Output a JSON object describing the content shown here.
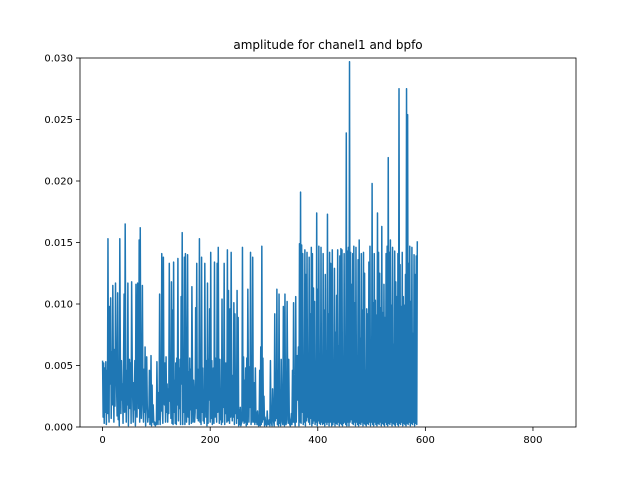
{
  "chart_data": {
    "type": "line",
    "title": "amplitude for chanel1 and bpfo",
    "xlabel": "",
    "ylabel": "",
    "xlim": [
      -42,
      880
    ],
    "ylim": [
      0.0,
      0.03
    ],
    "xticks": [
      0,
      200,
      400,
      600,
      800
    ],
    "xtick_labels": [
      "0",
      "200",
      "400",
      "600",
      "800"
    ],
    "yticks": [
      0.0,
      0.005,
      0.01,
      0.015,
      0.02,
      0.025,
      0.03
    ],
    "ytick_labels": [
      "0.000",
      "0.005",
      "0.010",
      "0.015",
      "0.020",
      "0.025",
      "0.030"
    ],
    "grid": false,
    "series": [
      {
        "color": "#1f77b4",
        "x_start": 0,
        "x_step": 1,
        "values": [
          0.0054,
          0.0008,
          0.0052,
          0.0003,
          0.0048,
          0.0012,
          0.0053,
          0.0002,
          0.0046,
          0.0011,
          0.0153,
          0.0021,
          0.0004,
          0.0098,
          0.0035,
          0.0105,
          0.0007,
          0.0061,
          0.0018,
          0.0115,
          0.0046,
          0.0004,
          0.0063,
          0.0017,
          0.0117,
          0.0057,
          0.0033,
          0.0009,
          0.0109,
          0.0006,
          0.0035,
          0.0001,
          0.0153,
          0.0056,
          0.0011,
          0.0054,
          0.0022,
          0.0035,
          0.0003,
          0.0055,
          0.0108,
          0.0012,
          0.0165,
          0.0051,
          0.0004,
          0.0046,
          0.0018,
          0.0117,
          0.0001,
          0.0041,
          0.0055,
          0.0015,
          0.0052,
          0.0003,
          0.0118,
          0.0058,
          0.0024,
          0.0004,
          0.0036,
          0.0014,
          0.0054,
          0.0001,
          0.0116,
          0.0032,
          0.0008,
          0.0117,
          0.0052,
          0.0015,
          0.0152,
          0.0004,
          0.0162,
          0.0041,
          0.0007,
          0.0034,
          0.0115,
          0.0022,
          0.0004,
          0.0047,
          0.0012,
          0.0065,
          0.0001,
          0.0031,
          0.0057,
          0.0018,
          0.0004,
          0.0012,
          0.0008,
          0.0046,
          0.0002,
          0.0009,
          0.0058,
          0.0001,
          0.0034,
          0.0004,
          0.0018,
          0.0005,
          0.0002,
          0.0004,
          0.0001,
          0.0003,
          0.0002,
          0.0053,
          0.0012,
          0.0002,
          0.0028,
          0.0006,
          0.0108,
          0.0002,
          0.0034,
          0.0013,
          0.0141,
          0.0017,
          0.0003,
          0.0138,
          0.0026,
          0.0018,
          0.0052,
          0.0004,
          0.0057,
          0.0012,
          0.0035,
          0.0004,
          0.0031,
          0.0011,
          0.0133,
          0.0021,
          0.0052,
          0.0007,
          0.0118,
          0.0003,
          0.0095,
          0.0002,
          0.0134,
          0.0012,
          0.0038,
          0.0003,
          0.0052,
          0.0002,
          0.0056,
          0.0018,
          0.0137,
          0.0005,
          0.0048,
          0.0015,
          0.0055,
          0.0002,
          0.0106,
          0.0035,
          0.0158,
          0.0002,
          0.0056,
          0.0012,
          0.0138,
          0.0002,
          0.0141,
          0.0048,
          0.0004,
          0.0032,
          0.014,
          0.0008,
          0.0045,
          0.0002,
          0.0056,
          0.0014,
          0.0047,
          0.0003,
          0.0114,
          0.0051,
          0.0004,
          0.0038,
          0.0026,
          0.0004,
          0.0012,
          0.0097,
          0.0015,
          0.0133,
          0.0007,
          0.0047,
          0.0005,
          0.0018,
          0.0153,
          0.0004,
          0.0062,
          0.0002,
          0.0138,
          0.0012,
          0.0048,
          0.0005,
          0.0017,
          0.0003,
          0.0133,
          0.0046,
          0.0008,
          0.0054,
          0.0001,
          0.0117,
          0.0003,
          0.0055,
          0.0022,
          0.0096,
          0.0004,
          0.0142,
          0.0007,
          0.0054,
          0.0002,
          0.0017,
          0.0048,
          0.0003,
          0.0134,
          0.0008,
          0.0056,
          0.0023,
          0.0004,
          0.0133,
          0.0012,
          0.0146,
          0.0038,
          0.0003,
          0.0055,
          0.0006,
          0.0018,
          0.0002,
          0.0104,
          0.0004,
          0.0051,
          0.0016,
          0.0133,
          0.0002,
          0.0052,
          0.0011,
          0.0052,
          0.0004,
          0.0144,
          0.0005,
          0.0111,
          0.0017,
          0.0003,
          0.0096,
          0.0008,
          0.0142,
          0.0028,
          0.0005,
          0.0042,
          0.0008,
          0.0101,
          0.0002,
          0.0092,
          0.0011,
          0.0038,
          0.0003,
          0.0111,
          0.0007,
          0.0089,
          0.0001,
          0.0014,
          0.0002,
          0.0016,
          0.0001,
          0.0003,
          0.0004,
          0.0146,
          0.0005,
          0.0057,
          0.0003,
          0.0038,
          0.0004,
          0.0048,
          0.0001,
          0.0056,
          0.0002,
          0.0112,
          0.0036,
          0.0004,
          0.0049,
          0.0016,
          0.0142,
          0.0002,
          0.0055,
          0.0004,
          0.0138,
          0.0012,
          0.0004,
          0.0036,
          0.0002,
          0.0048,
          0.0004,
          0.0012,
          0.0002,
          0.0013,
          0.0004,
          0.0001,
          0.0002,
          0.0046,
          0.0001,
          0.0065,
          0.0002,
          0.0147,
          0.0004,
          0.0056,
          0.0006,
          0.0025,
          0.0001,
          0.0008,
          0.0003,
          0.0002,
          0.0001,
          0.0013,
          0.0003,
          0.0002,
          0.0004,
          0.0006,
          0.0001,
          0.0054,
          0.0004,
          0.0003,
          0.0001,
          0.0031,
          0.0013,
          0.0004,
          0.0001,
          0.0092,
          0.0005,
          0.0026,
          0.0007,
          0.0112,
          0.0002,
          0.0046,
          0.0001,
          0.0108,
          0.0003,
          0.0023,
          0.0001,
          0.0055,
          0.0017,
          0.0004,
          0.0002,
          0.0098,
          0.0012,
          0.0001,
          0.0108,
          0.0003,
          0.0002,
          0.0006,
          0.0102,
          0.0042,
          0.0003,
          0.0055,
          0.0008,
          0.0002,
          0.0001,
          0.0005,
          0.0011,
          0.0002,
          0.0046,
          0.0004,
          0.0101,
          0.0004,
          0.0006,
          0.0001,
          0.0106,
          0.0004,
          0.0034,
          0.0058,
          0.0022,
          0.0065,
          0.0001,
          0.0149,
          0.0004,
          0.0191,
          0.0003,
          0.0148,
          0.0012,
          0.0141,
          0.0002,
          0.0055,
          0.0004,
          0.0144,
          0.0001,
          0.0124,
          0.0005,
          0.0142,
          0.0008,
          0.0011,
          0.0004,
          0.0138,
          0.0002,
          0.0092,
          0.0007,
          0.0146,
          0.0001,
          0.0141,
          0.0003,
          0.0113,
          0.0005,
          0.0102,
          0.0002,
          0.0013,
          0.0004,
          0.0174,
          0.0001,
          0.0112,
          0.0005,
          0.0147,
          0.0003,
          0.0035,
          0.0002,
          0.0146,
          0.0004,
          0.0055,
          0.0002,
          0.0141,
          0.0003,
          0.0095,
          0.0001,
          0.0124,
          0.0004,
          0.0062,
          0.0002,
          0.0173,
          0.0004,
          0.0092,
          0.0001,
          0.0142,
          0.0004,
          0.0133,
          0.0008,
          0.0001,
          0.0144,
          0.0002,
          0.0045,
          0.0004,
          0.0129,
          0.0001,
          0.0077,
          0.0003,
          0.0107,
          0.0002,
          0.0144,
          0.0004,
          0.0066,
          0.0001,
          0.0139,
          0.0003,
          0.0145,
          0.0002,
          0.0144,
          0.0001,
          0.0045,
          0.0003,
          0.0141,
          0.0004,
          0.0032,
          0.0002,
          0.0239,
          0.0001,
          0.0143,
          0.0004,
          0.0146,
          0.0001,
          0.0297,
          0.0004,
          0.0142,
          0.0006,
          0.0116,
          0.0003,
          0.0141,
          0.0002,
          0.0147,
          0.0004,
          0.0101,
          0.0001,
          0.0146,
          0.0004,
          0.0051,
          0.0002,
          0.0136,
          0.0001,
          0.0152,
          0.0003,
          0.0072,
          0.0002,
          0.0141,
          0.0004,
          0.0095,
          0.0001,
          0.0142,
          0.0003,
          0.0125,
          0.0002,
          0.0046,
          0.0001,
          0.0096,
          0.0003,
          0.0092,
          0.0002,
          0.0134,
          0.0004,
          0.0147,
          0.0001,
          0.0032,
          0.0004,
          0.0198,
          0.0002,
          0.0101,
          0.0001,
          0.0141,
          0.0004,
          0.0103,
          0.0002,
          0.0091,
          0.0001,
          0.0174,
          0.0003,
          0.0142,
          0.0002,
          0.0125,
          0.0004,
          0.0097,
          0.0001,
          0.0163,
          0.0003,
          0.0093,
          0.0002,
          0.0116,
          0.0001,
          0.0089,
          0.0004,
          0.0141,
          0.0002,
          0.0147,
          0.0001,
          0.0219,
          0.0003,
          0.0142,
          0.0002,
          0.0152,
          0.0004,
          0.0099,
          0.0001,
          0.0146,
          0.0003,
          0.0067,
          0.0002,
          0.0143,
          0.0001,
          0.0118,
          0.0004,
          0.0106,
          0.0002,
          0.0141,
          0.0001,
          0.0275,
          0.0003,
          0.0132,
          0.0002,
          0.0098,
          0.0004,
          0.0142,
          0.0001,
          0.0106,
          0.0003,
          0.0099,
          0.0002,
          0.0124,
          0.0001,
          0.0275,
          0.0003,
          0.0254,
          0.0002,
          0.0133,
          0.0004,
          0.0147,
          0.0001,
          0.0102,
          0.0003,
          0.0146,
          0.0002,
          0.0076,
          0.0004,
          0.014,
          0.0001,
          0.0124,
          0.0003,
          0.0139,
          0.0002,
          0.0151
        ]
      }
    ]
  }
}
